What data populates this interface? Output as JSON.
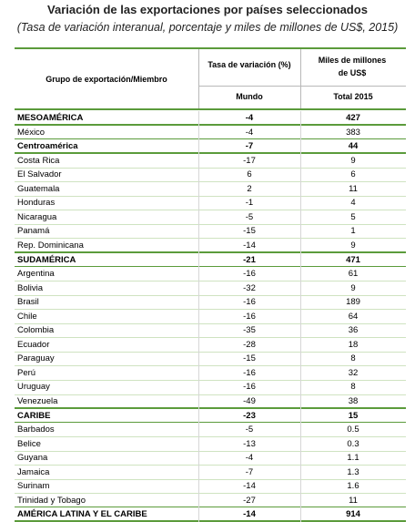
{
  "title": "Variación de las exportaciones por países seleccionados",
  "subtitle": "(Tasa de variación interanual, porcentaje y miles de millones de US$, 2015)",
  "table": {
    "header": {
      "group": "Grupo de exportación/Miembro",
      "rate": "Tasa de variación (%)",
      "amount": "Miles de millones de US$",
      "world": "Mundo",
      "total": "Total 2015"
    },
    "rows": [
      {
        "label": "MESOAMÉRICA",
        "world": -4,
        "total": 427,
        "bold": true
      },
      {
        "label": "México",
        "world": -4,
        "total": 383
      },
      {
        "label": "Centroamérica",
        "world": -7,
        "total": 44,
        "bold": true
      },
      {
        "label": "Costa Rica",
        "world": -17,
        "total": 9
      },
      {
        "label": "El Salvador",
        "world": 6,
        "total": 6
      },
      {
        "label": "Guatemala",
        "world": 2,
        "total": 11
      },
      {
        "label": "Honduras",
        "world": -1,
        "total": 4
      },
      {
        "label": "Nicaragua",
        "world": -5,
        "total": 5
      },
      {
        "label": "Panamá",
        "world": -15,
        "total": 1
      },
      {
        "label": "Rep. Dominicana",
        "world": -14,
        "total": 9
      },
      {
        "label": "SUDAMÉRICA",
        "world": -21,
        "total": 471,
        "bold": true
      },
      {
        "label": "Argentina",
        "world": -16,
        "total": 61
      },
      {
        "label": "Bolivia",
        "world": -32,
        "total": 9
      },
      {
        "label": "Brasil",
        "world": -16,
        "total": 189
      },
      {
        "label": "Chile",
        "world": -16,
        "total": 64
      },
      {
        "label": "Colombia",
        "world": -35,
        "total": 36
      },
      {
        "label": "Ecuador",
        "world": -28,
        "total": 18
      },
      {
        "label": "Paraguay",
        "world": -15,
        "total": 8
      },
      {
        "label": "Perú",
        "world": -16,
        "total": 32
      },
      {
        "label": "Uruguay",
        "world": -16,
        "total": 8
      },
      {
        "label": "Venezuela",
        "world": -49,
        "total": 38
      },
      {
        "label": "CARIBE",
        "world": -23,
        "total": 15,
        "bold": true
      },
      {
        "label": "Barbados",
        "world": -5,
        "total": 0.5
      },
      {
        "label": "Belice",
        "world": -13,
        "total": 0.3
      },
      {
        "label": "Guyana",
        "world": -4,
        "total": 1.1
      },
      {
        "label": "Jamaica",
        "world": -7,
        "total": 1.3
      },
      {
        "label": "Surinam",
        "world": -14,
        "total": 1.6
      },
      {
        "label": "Trinidad y Tobago",
        "world": -27,
        "total": 11
      },
      {
        "label": "AMÉRICA LATINA Y EL CARIBE",
        "world": -14,
        "total": 914,
        "bold": true
      }
    ]
  }
}
